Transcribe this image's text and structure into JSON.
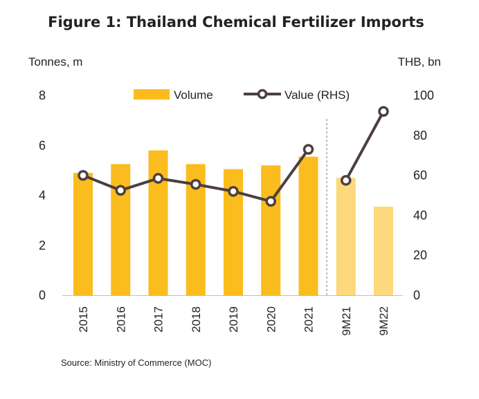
{
  "chart_data": {
    "type": "bar",
    "title": "Figure 1: Thailand Chemical Fertilizer Imports",
    "left_axis_label": "Tonnes, m",
    "right_axis_label": "THB, bn",
    "categories": [
      "2015",
      "2016",
      "2017",
      "2018",
      "2019",
      "2020",
      "2021",
      "9M21",
      "9M22"
    ],
    "left_ticks": [
      "0",
      "2",
      "4",
      "6",
      "8"
    ],
    "right_ticks": [
      "0",
      "20",
      "40",
      "60",
      "80",
      "100"
    ],
    "ylim_left": [
      0,
      8
    ],
    "ylim_right": [
      0,
      100
    ],
    "series": [
      {
        "name": "Volume",
        "type": "bar",
        "axis": "left",
        "values": [
          4.9,
          5.25,
          5.8,
          5.25,
          5.05,
          5.2,
          5.55,
          4.7,
          3.55
        ],
        "colors": [
          "#FBBC1D",
          "#FBBC1D",
          "#FBBC1D",
          "#FBBC1D",
          "#FBBC1D",
          "#FBBC1D",
          "#FBBC1D",
          "#FDD87C",
          "#FDD87C"
        ]
      },
      {
        "name": "Value (RHS)",
        "type": "line",
        "axis": "right",
        "values": [
          60,
          52.5,
          58.5,
          55.5,
          52,
          47,
          73,
          57.5,
          92
        ],
        "segments": [
          [
            0,
            6
          ],
          [
            7,
            8
          ]
        ],
        "color": "#4D3F3F"
      }
    ],
    "divider_after_category": 6,
    "grid": false,
    "legend_position": "top"
  },
  "source": "Source: Ministry of Commerce (MOC)"
}
